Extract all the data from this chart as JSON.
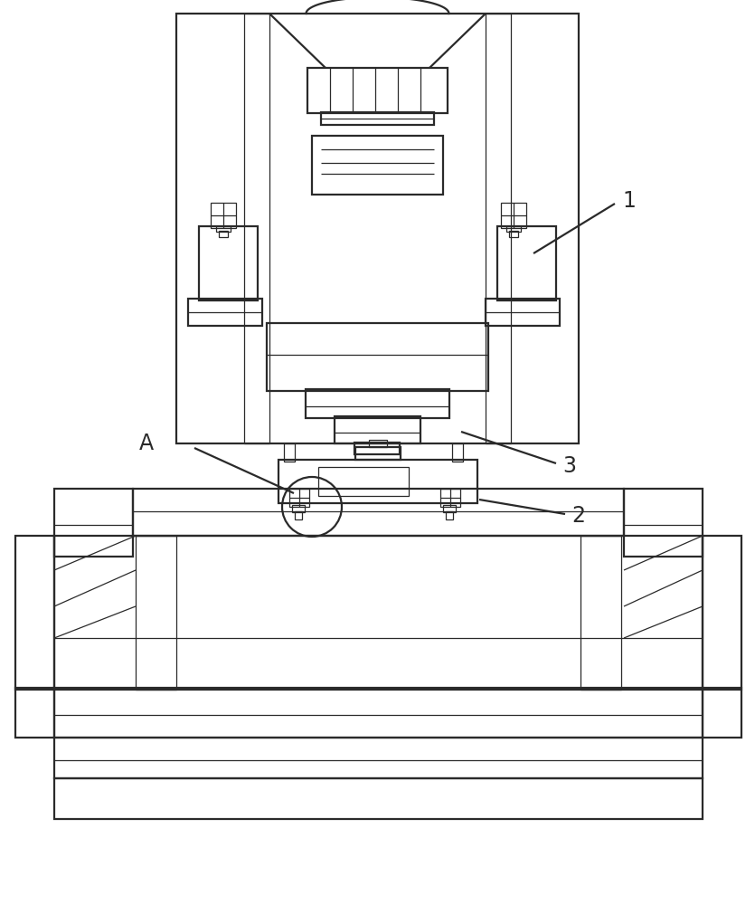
{
  "bg_color": "#ffffff",
  "line_color": "#2a2a2a",
  "line_width": 1.6,
  "thin_line": 0.9,
  "label_1": "1",
  "label_2": "2",
  "label_3": "3",
  "label_A": "A",
  "fig_width": 8.35,
  "fig_height": 10.0
}
